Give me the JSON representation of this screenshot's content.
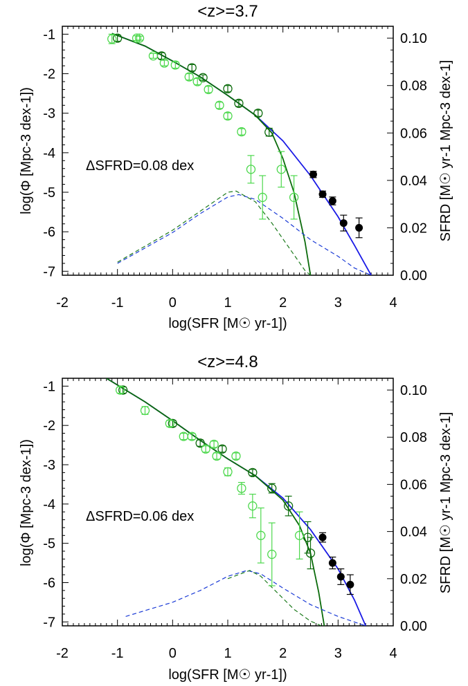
{
  "colors": {
    "dark_green": "#0b6b0b",
    "light_green": "#4cd84c",
    "black": "#000000",
    "blue": "#1a1ae6",
    "dashed_blue": "#1a3ad6",
    "dashed_green": "#1c7a1c"
  },
  "chart_data": [
    {
      "type": "scatter",
      "title": "<z>=3.7",
      "xlabel": "log(SFR [M☉ yr-1])",
      "ylabel_left": "log(Φ [Mpc-3 dex-1])",
      "ylabel_right": "SFRD [M☉ yr-1 Mpc-3 dex-1]",
      "xlim": [
        -2,
        4
      ],
      "ylim": [
        -7.1,
        -0.8
      ],
      "ylim_right": [
        0.0,
        0.105
      ],
      "xticks": [
        "-2",
        "-1",
        "0",
        "1",
        "2",
        "3",
        "4"
      ],
      "yticks": [
        "-1",
        "-2",
        "-3",
        "-4",
        "-5",
        "-6",
        "-7"
      ],
      "yticks_right": [
        "0.10",
        "0.08",
        "0.06",
        "0.04",
        "0.02",
        "0.00"
      ],
      "annotation": "ΔSFRD=0.08 dex",
      "series": [
        {
          "style": "open-circle-dark-green",
          "points": [
            [
              -1.0,
              -1.1,
              0.08
            ],
            [
              -0.2,
              -1.55,
              0.08
            ],
            [
              0.35,
              -1.85,
              0.08
            ],
            [
              0.55,
              -2.1,
              0.07
            ],
            [
              1.0,
              -2.38,
              0.08
            ],
            [
              1.2,
              -2.75,
              0.08
            ],
            [
              1.55,
              -3.0,
              0.08
            ],
            [
              1.75,
              -3.48,
              0.1
            ]
          ]
        },
        {
          "style": "open-circle-light-green",
          "points": [
            [
              -1.1,
              -1.12,
              0.12
            ],
            [
              -0.65,
              -1.1,
              0.06
            ],
            [
              -0.6,
              -1.1,
              0.05
            ],
            [
              -0.35,
              -1.55,
              0.06
            ],
            [
              -0.15,
              -1.73,
              0.07
            ],
            [
              0.05,
              -1.78,
              0.08
            ],
            [
              0.3,
              -2.08,
              0.08
            ],
            [
              0.45,
              -2.2,
              0.08
            ],
            [
              0.65,
              -2.4,
              0.08
            ],
            [
              0.85,
              -2.8,
              0.08
            ],
            [
              1.0,
              -3.07,
              0.08
            ],
            [
              1.25,
              -3.47,
              0.08
            ],
            [
              1.42,
              -4.42,
              0.35
            ],
            [
              1.63,
              -5.13,
              0.55
            ],
            [
              1.97,
              -4.42,
              0.45
            ],
            [
              2.2,
              -5.13,
              0.55
            ]
          ]
        },
        {
          "style": "filled-circle-black",
          "points": [
            [
              2.55,
              -4.55,
              0.08
            ],
            [
              2.72,
              -5.05,
              0.08
            ],
            [
              2.9,
              -5.22,
              0.1
            ],
            [
              3.1,
              -5.78,
              0.2
            ],
            [
              3.38,
              -5.9,
              0.25
            ]
          ]
        },
        {
          "style": "solid-blue",
          "points": [
            [
              -1.1,
              -0.98
            ],
            [
              -0.5,
              -1.3
            ],
            [
              0.0,
              -1.68
            ],
            [
              0.5,
              -2.08
            ],
            [
              1.0,
              -2.55
            ],
            [
              1.5,
              -3.05
            ],
            [
              2.0,
              -3.7
            ],
            [
              2.5,
              -4.58
            ],
            [
              3.0,
              -5.62
            ],
            [
              3.3,
              -6.35
            ],
            [
              3.6,
              -7.1
            ]
          ]
        },
        {
          "style": "solid-dark-green",
          "points": [
            [
              -1.1,
              -0.98
            ],
            [
              -0.5,
              -1.3
            ],
            [
              0.0,
              -1.68
            ],
            [
              0.5,
              -2.08
            ],
            [
              1.0,
              -2.55
            ],
            [
              1.5,
              -3.05
            ],
            [
              1.8,
              -3.5
            ],
            [
              2.0,
              -4.15
            ],
            [
              2.2,
              -5.0
            ],
            [
              2.4,
              -6.25
            ],
            [
              2.5,
              -7.1
            ]
          ]
        },
        {
          "style": "dashed-blue",
          "points": [
            [
              -1.0,
              0.005
            ],
            [
              0.0,
              0.018
            ],
            [
              0.5,
              0.026
            ],
            [
              1.0,
              0.033
            ],
            [
              1.2,
              0.034
            ],
            [
              1.5,
              0.032
            ],
            [
              2.0,
              0.024
            ],
            [
              2.5,
              0.015
            ],
            [
              3.0,
              0.008
            ],
            [
              3.3,
              0.003
            ],
            [
              3.6,
              0.0
            ]
          ]
        },
        {
          "style": "dashed-dark-green",
          "points": [
            [
              -1.0,
              0.0055
            ],
            [
              0.0,
              0.019
            ],
            [
              0.5,
              0.027
            ],
            [
              1.0,
              0.035
            ],
            [
              1.15,
              0.0355
            ],
            [
              1.5,
              0.031
            ],
            [
              1.8,
              0.022
            ],
            [
              2.1,
              0.012
            ],
            [
              2.4,
              0.002
            ],
            [
              2.5,
              0.0
            ]
          ]
        }
      ]
    },
    {
      "type": "scatter",
      "title": "<z>=4.8",
      "xlabel": "log(SFR [M☉ yr-1])",
      "ylabel_left": "log(Φ [Mpc-3 dex-1])",
      "ylabel_right": "SFRD [M☉ yr-1 Mpc-3 dex-1]",
      "xlim": [
        -2,
        4
      ],
      "ylim": [
        -7.1,
        -0.8
      ],
      "ylim_right": [
        0.0,
        0.105
      ],
      "xticks": [
        "-2",
        "-1",
        "0",
        "1",
        "2",
        "3",
        "4"
      ],
      "yticks": [
        "-1",
        "-2",
        "-3",
        "-4",
        "-5",
        "-6",
        "-7"
      ],
      "yticks_right": [
        "0.10",
        "0.08",
        "0.06",
        "0.04",
        "0.02",
        "0.00"
      ],
      "annotation": "ΔSFRD=0.06 dex",
      "series": [
        {
          "style": "open-circle-dark-green",
          "points": [
            [
              -0.9,
              -1.1,
              0.08
            ],
            [
              0.0,
              -1.95,
              0.08
            ],
            [
              0.5,
              -2.45,
              0.08
            ],
            [
              0.9,
              -2.6,
              0.08
            ],
            [
              1.45,
              -3.2,
              0.08
            ],
            [
              1.8,
              -3.6,
              0.12
            ],
            [
              2.1,
              -4.05,
              0.25
            ],
            [
              2.45,
              -4.85,
              0.4
            ],
            [
              2.5,
              -5.25,
              0.4
            ]
          ]
        },
        {
          "style": "open-circle-light-green",
          "points": [
            [
              -0.95,
              -1.1,
              0.08
            ],
            [
              -0.5,
              -1.62,
              0.1
            ],
            [
              -0.05,
              -1.95,
              0.08
            ],
            [
              0.2,
              -2.28,
              0.08
            ],
            [
              0.35,
              -2.28,
              0.08
            ],
            [
              0.6,
              -2.6,
              0.08
            ],
            [
              0.75,
              -2.48,
              0.08
            ],
            [
              0.8,
              -2.78,
              0.08
            ],
            [
              1.0,
              -3.18,
              0.1
            ],
            [
              1.15,
              -2.78,
              0.08
            ],
            [
              1.25,
              -3.6,
              0.15
            ],
            [
              1.45,
              -4.05,
              0.3
            ],
            [
              1.6,
              -4.8,
              0.7
            ],
            [
              1.8,
              -5.28,
              0.8
            ],
            [
              2.3,
              -4.8,
              0.6
            ]
          ]
        },
        {
          "style": "filled-circle-black",
          "points": [
            [
              2.72,
              -4.85,
              0.12
            ],
            [
              2.9,
              -5.5,
              0.15
            ],
            [
              3.05,
              -5.85,
              0.2
            ],
            [
              3.22,
              -6.05,
              0.25
            ]
          ]
        },
        {
          "style": "solid-blue",
          "points": [
            [
              -1.2,
              -0.8
            ],
            [
              -0.5,
              -1.4
            ],
            [
              0.0,
              -1.88
            ],
            [
              0.5,
              -2.38
            ],
            [
              1.0,
              -2.85
            ],
            [
              1.5,
              -3.28
            ],
            [
              2.0,
              -3.85
            ],
            [
              2.5,
              -4.65
            ],
            [
              3.0,
              -5.65
            ],
            [
              3.3,
              -6.45
            ],
            [
              3.5,
              -7.1
            ]
          ]
        },
        {
          "style": "solid-dark-green",
          "points": [
            [
              -1.2,
              -0.8
            ],
            [
              -0.5,
              -1.4
            ],
            [
              0.0,
              -1.88
            ],
            [
              0.5,
              -2.38
            ],
            [
              1.0,
              -2.85
            ],
            [
              1.5,
              -3.28
            ],
            [
              2.0,
              -3.9
            ],
            [
              2.3,
              -4.55
            ],
            [
              2.5,
              -5.25
            ],
            [
              2.65,
              -6.25
            ],
            [
              2.75,
              -7.1
            ]
          ]
        },
        {
          "style": "dashed-blue",
          "points": [
            [
              -0.85,
              0.004
            ],
            [
              0.0,
              0.01
            ],
            [
              0.5,
              0.015
            ],
            [
              1.0,
              0.021
            ],
            [
              1.35,
              0.0235
            ],
            [
              1.6,
              0.022
            ],
            [
              2.0,
              0.016
            ],
            [
              2.5,
              0.009
            ],
            [
              3.0,
              0.004
            ],
            [
              3.5,
              0.0
            ]
          ]
        },
        {
          "style": "dashed-dark-green",
          "points": [
            [
              1.0,
              0.02
            ],
            [
              1.4,
              0.0235
            ],
            [
              1.6,
              0.021
            ],
            [
              1.9,
              0.014
            ],
            [
              2.2,
              0.007
            ],
            [
              2.5,
              0.002
            ],
            [
              2.7,
              0.0
            ]
          ]
        }
      ]
    }
  ]
}
